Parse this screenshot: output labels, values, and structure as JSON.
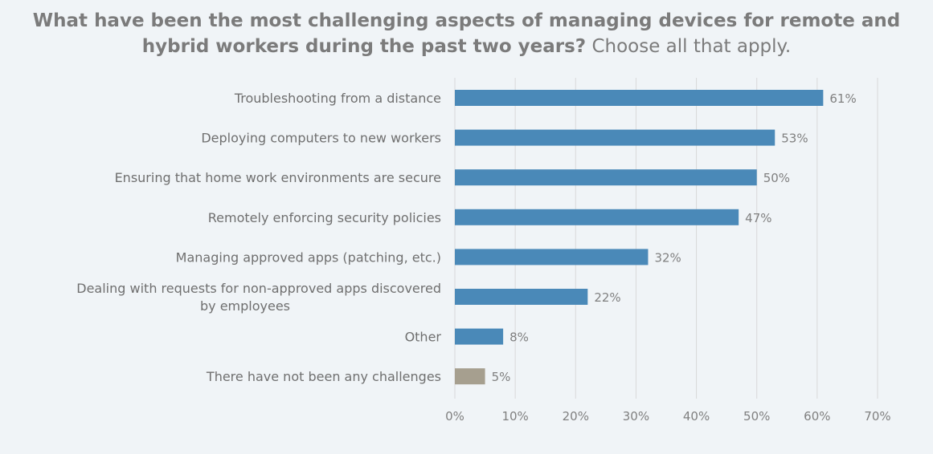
{
  "chart_data": {
    "type": "bar",
    "orientation": "horizontal",
    "title_bold": "What have been the most challenging aspects of managing devices for remote and hybrid workers during the past two years?",
    "title_light": "Choose all that apply.",
    "categories": [
      [
        "Troubleshooting from a distance"
      ],
      [
        "Deploying computers to new workers"
      ],
      [
        "Ensuring that home work environments are secure"
      ],
      [
        "Remotely enforcing security policies"
      ],
      [
        "Managing approved apps (patching, etc.)"
      ],
      [
        "Dealing with requests for non-approved apps discovered",
        "by employees"
      ],
      [
        "Other"
      ],
      [
        "There have not been any challenges"
      ]
    ],
    "values": [
      61,
      53,
      50,
      47,
      32,
      22,
      8,
      5
    ],
    "value_labels": [
      "61%",
      "53%",
      "50%",
      "47%",
      "32%",
      "22%",
      "8%",
      "5%"
    ],
    "bar_colors": [
      "#4a89b8",
      "#4a89b8",
      "#4a89b8",
      "#4a89b8",
      "#4a89b8",
      "#4a89b8",
      "#4a89b8",
      "#a69f8f"
    ],
    "xlim": [
      0,
      70
    ],
    "xticks": [
      0,
      10,
      20,
      30,
      40,
      50,
      60,
      70
    ],
    "xtick_labels": [
      "0%",
      "10%",
      "20%",
      "30%",
      "40%",
      "50%",
      "60%",
      "70%"
    ],
    "xlabel": "",
    "ylabel": "",
    "grid": true,
    "legend": "none"
  }
}
